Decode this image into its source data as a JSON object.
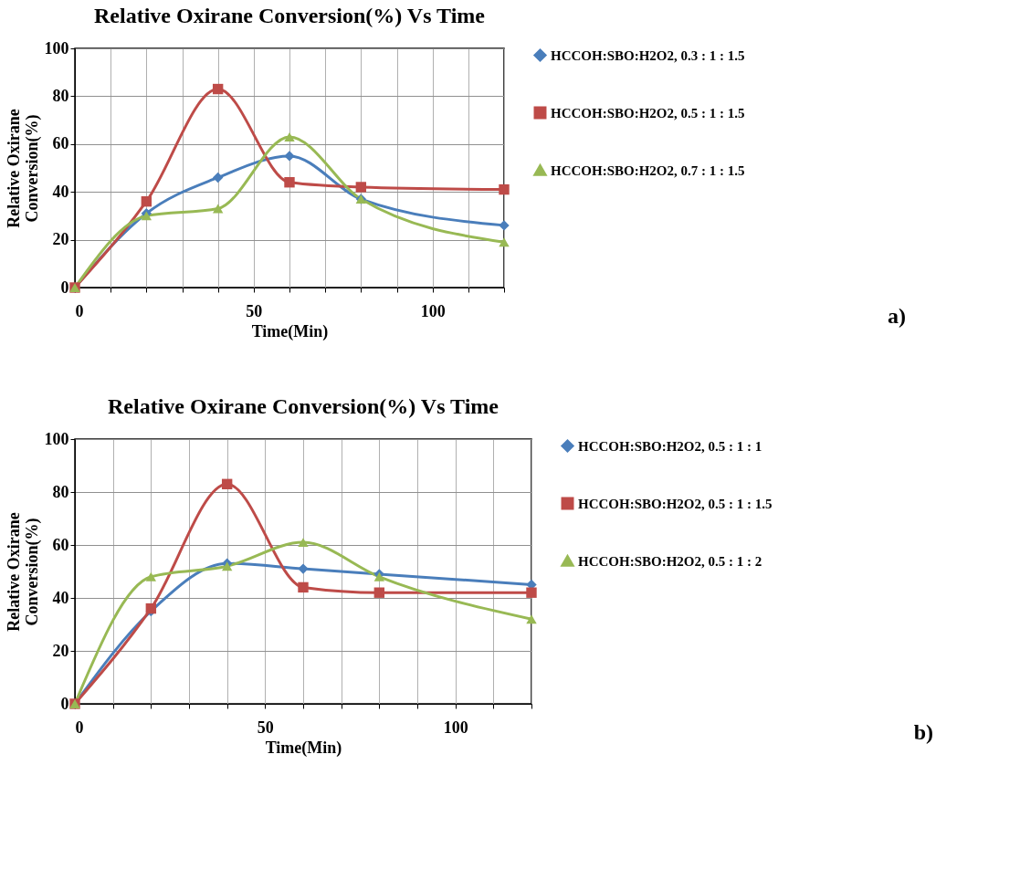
{
  "chart_data": [
    {
      "type": "line",
      "title": "Relative Oxirane Conversion(%) Vs Time",
      "xlabel": "Time(Min)",
      "ylabel": "Relative Oxirane\nConversion(%)",
      "x": [
        0,
        20,
        40,
        60,
        80,
        120
      ],
      "series": [
        {
          "name": "HCCOH:SBO:H2O2, 0.3 : 1 : 1.5",
          "color": "#4a7ebb",
          "marker": "diamond",
          "values": [
            0,
            31,
            46,
            55,
            37,
            26
          ]
        },
        {
          "name": "HCCOH:SBO:H2O2, 0.5 : 1 : 1.5",
          "color": "#be4b48",
          "marker": "square",
          "values": [
            0,
            36,
            83,
            44,
            42,
            41
          ]
        },
        {
          "name": "HCCOH:SBO:H2O2, 0.7 : 1 : 1.5",
          "color": "#98b954",
          "marker": "triangle",
          "values": [
            0,
            30,
            33,
            63,
            37,
            19
          ]
        }
      ],
      "xlim": [
        0,
        120
      ],
      "xticks": [
        0,
        {
          "value": 10,
          "label": null
        },
        {
          "value": 20,
          "label": null
        },
        {
          "value": 30,
          "label": null
        },
        {
          "value": 40,
          "label": null
        },
        50,
        {
          "value": 60,
          "label": null
        },
        {
          "value": 70,
          "label": null
        },
        {
          "value": 80,
          "label": null
        },
        {
          "value": 90,
          "label": null
        },
        100,
        {
          "value": 110,
          "label": null
        },
        {
          "value": 120,
          "label": null
        }
      ],
      "ylim": [
        0,
        100
      ],
      "yticks": [
        0,
        20,
        40,
        60,
        80,
        100
      ],
      "grid": true,
      "legend": "right",
      "line_style": "solid",
      "annotations": [
        "a)"
      ]
    },
    {
      "type": "line",
      "title": "Relative Oxirane Conversion(%) Vs Time",
      "xlabel": "Time(Min)",
      "ylabel": "Relative Oxirane\nConversion(%)",
      "x": [
        0,
        20,
        40,
        60,
        80,
        120
      ],
      "series": [
        {
          "name": "HCCOH:SBO:H2O2, 0.5 : 1 : 1",
          "color": "#4a7ebb",
          "marker": "diamond",
          "values": [
            0,
            35,
            53,
            51,
            49,
            45
          ]
        },
        {
          "name": "HCCOH:SBO:H2O2, 0.5 : 1 : 1.5",
          "color": "#be4b48",
          "marker": "square",
          "values": [
            0,
            36,
            83,
            44,
            42,
            42
          ]
        },
        {
          "name": "HCCOH:SBO:H2O2, 0.5 : 1 : 2",
          "color": "#98b954",
          "marker": "triangle",
          "values": [
            0,
            48,
            52,
            61,
            48,
            32
          ]
        }
      ],
      "xlim": [
        0,
        120
      ],
      "xticks": [
        0,
        {
          "value": 10,
          "label": null
        },
        {
          "value": 20,
          "label": null
        },
        {
          "value": 30,
          "label": null
        },
        {
          "value": 40,
          "label": null
        },
        50,
        {
          "value": 60,
          "label": null
        },
        {
          "value": 70,
          "label": null
        },
        {
          "value": 80,
          "label": null
        },
        {
          "value": 90,
          "label": null
        },
        100,
        {
          "value": 110,
          "label": null
        },
        {
          "value": 120,
          "label": null
        }
      ],
      "ylim": [
        0,
        100
      ],
      "yticks": [
        0,
        20,
        40,
        60,
        80,
        100
      ],
      "grid": true,
      "legend": "right",
      "line_style": "solid",
      "annotations": [
        "b)"
      ]
    }
  ]
}
